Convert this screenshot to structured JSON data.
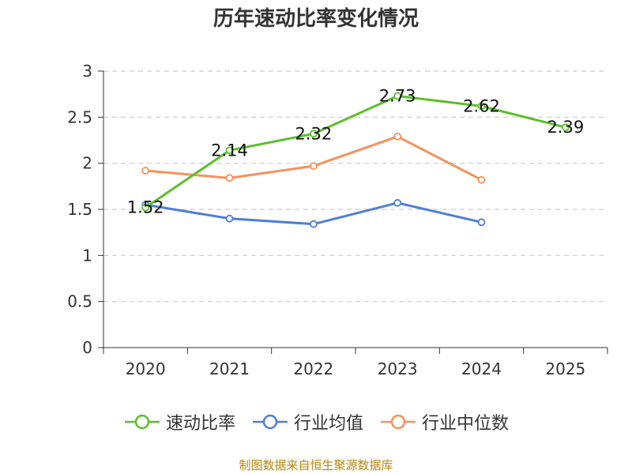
{
  "chart_data": {
    "type": "line",
    "title": "历年速动比率变化情况",
    "categories": [
      "2020",
      "2021",
      "2022",
      "2023",
      "2024",
      "2025"
    ],
    "ylim": [
      0,
      3
    ],
    "yticks": [
      0,
      0.5,
      1,
      1.5,
      2,
      2.5,
      3
    ],
    "ytick_labels": [
      "0",
      "0.5",
      "1",
      "1.5",
      "2",
      "2.5",
      "3"
    ],
    "grid": true,
    "legend_position": "bottom",
    "series": [
      {
        "name": "速动比率",
        "color": "#5cbf2a",
        "values": [
          1.52,
          2.14,
          2.32,
          2.73,
          2.62,
          2.39
        ],
        "data_labels": [
          "1.52",
          "2.14",
          "2.32",
          "2.73",
          "2.62",
          "2.39"
        ]
      },
      {
        "name": "行业均值",
        "color": "#4e7fd6",
        "values": [
          1.55,
          1.4,
          1.34,
          1.57,
          1.36,
          null
        ]
      },
      {
        "name": "行业中位数",
        "color": "#f6915c",
        "values": [
          1.92,
          1.84,
          1.97,
          2.29,
          1.82,
          null
        ]
      }
    ]
  },
  "footer": {
    "source": "制图数据来自恒生聚源数据库"
  }
}
